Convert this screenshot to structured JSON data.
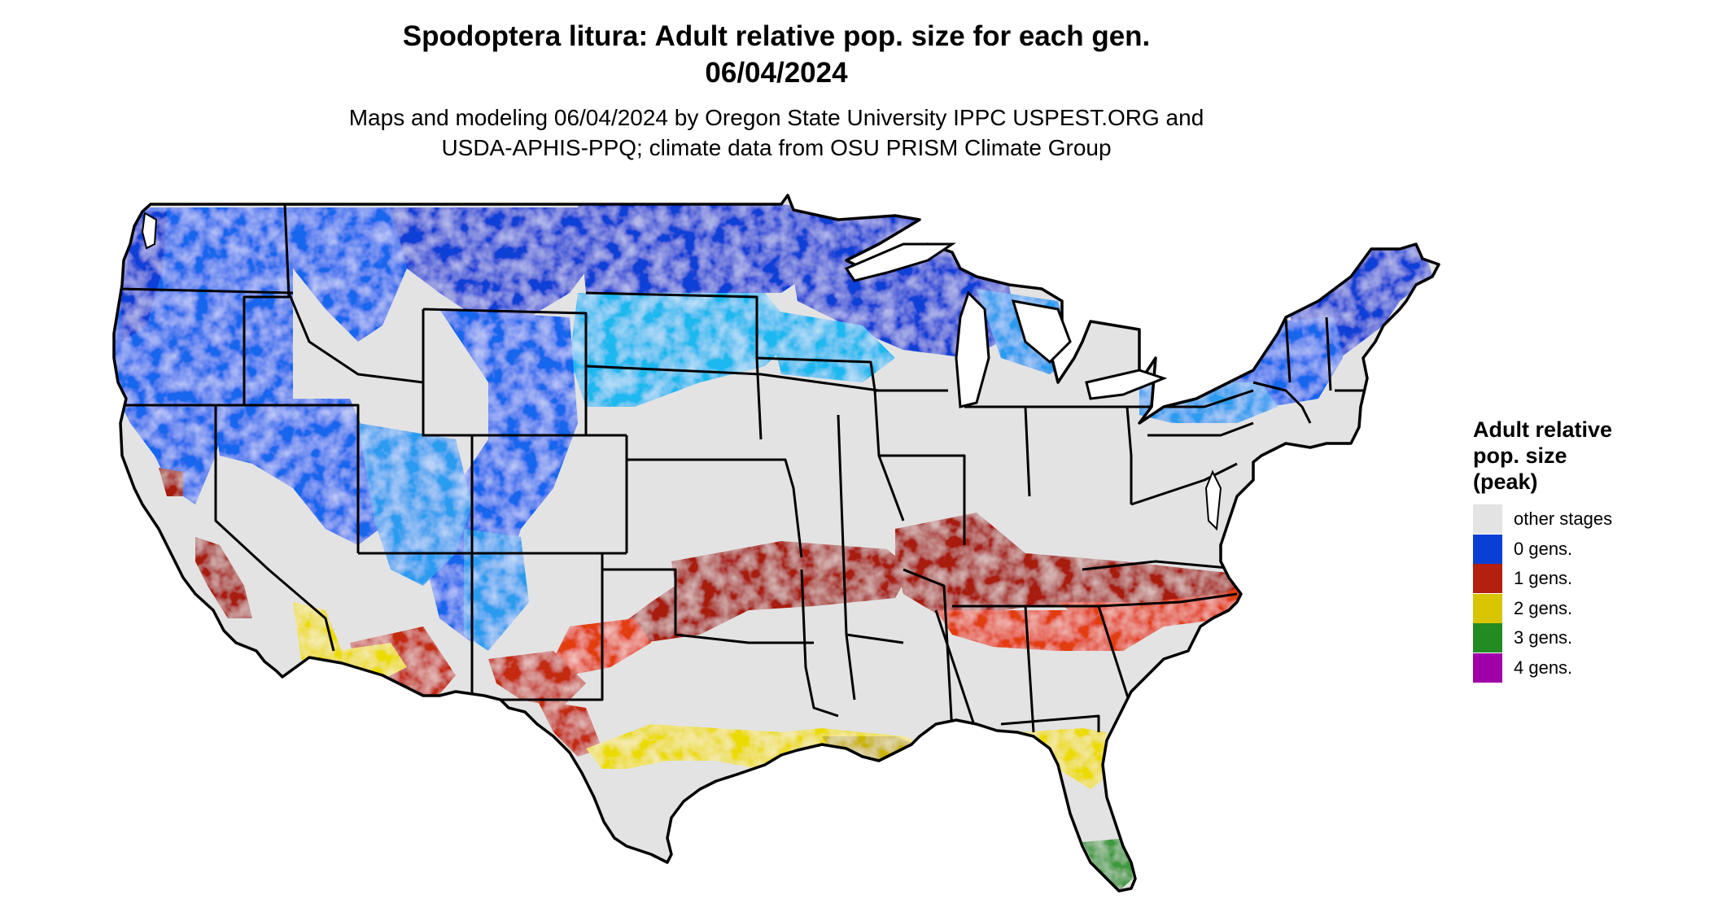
{
  "title": {
    "line1": "Spodoptera litura: Adult relative pop. size for each gen.",
    "line2": "06/04/2024"
  },
  "subtitle": {
    "line1": "Maps and modeling 06/04/2024 by Oregon State University IPPC USPEST.ORG and",
    "line2": "USDA-APHIS-PPQ; climate data from OSU PRISM Climate Group"
  },
  "legend": {
    "title_lines": [
      "Adult relative",
      "pop. size",
      "(peak)"
    ],
    "items": [
      {
        "label": "other stages",
        "color": "#e3e3e3"
      },
      {
        "label": "0 gens.",
        "color": "#0a3fd6"
      },
      {
        "label": "1 gens.",
        "color": "#b3200f"
      },
      {
        "label": "2 gens.",
        "color": "#d9c400"
      },
      {
        "label": "3 gens.",
        "color": "#228b22"
      },
      {
        "label": "4 gens.",
        "color": "#a000a8"
      }
    ]
  },
  "map": {
    "base_color": "#e3e3e3",
    "border_color": "#000000",
    "zone_colors": {
      "gen0_dark": "#0a3fd6",
      "gen0_mid": "#1466ee",
      "gen0_light": "#2a9cf0",
      "gen0_cyan": "#1ab8f0",
      "gen1_dark": "#a81f10",
      "gen1_mid": "#c42a10",
      "gen1_bright": "#e33d08",
      "gen2_yellow": "#ecdb00",
      "gen2_olive": "#c9b400",
      "gen3_green": "#3a9a3a"
    }
  }
}
